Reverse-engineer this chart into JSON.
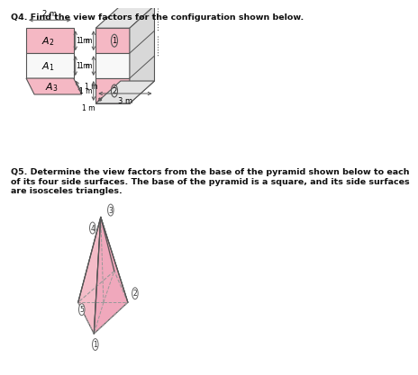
{
  "title_q4": "Q4. Find the view factors for the configuration shown below.",
  "title_q5": "Q5. Determine the view factors from the base of the pyramid shown below to each\nof its four side surfaces. The base of the pyramid is a square, and its side surfaces\nare isosceles triangles.",
  "bg_color": "#ffffff",
  "pink_fill": "#f5b8c4",
  "pink_dark": "#f0a0b5",
  "line_color": "#555555",
  "dashed_color": "#999999",
  "gray_side": "#d8d8d8",
  "gray_top": "#e4e4e4",
  "white_mid": "#f8f8f8"
}
